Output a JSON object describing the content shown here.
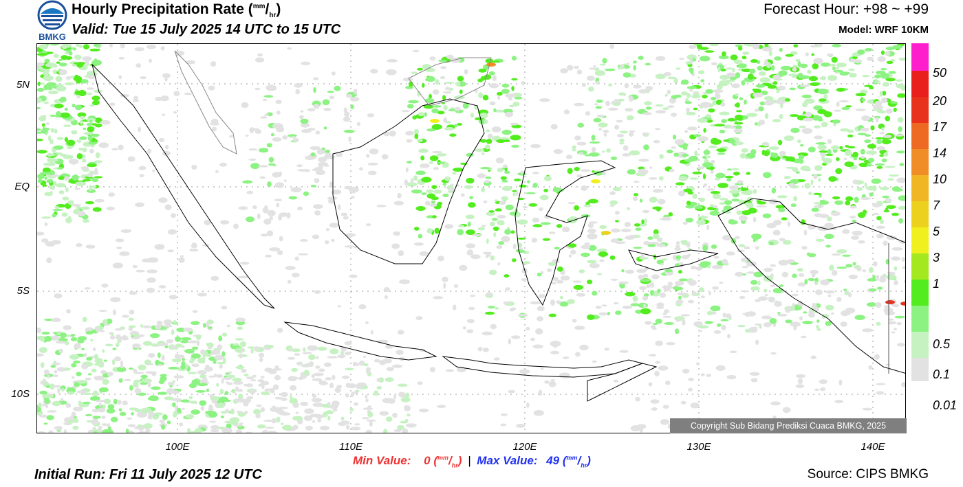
{
  "header": {
    "logo_text": "BMKG",
    "title_main": "Hourly Precipitation Rate (",
    "title_unit_num": "mm",
    "title_unit_sep": "/",
    "title_unit_den": "hr",
    "title_close": ")",
    "valid": "Valid: Tue 15 July 2025 14 UTC to 15 UTC",
    "forecast_hour": "Forecast Hour: +98 ~ +99",
    "model": "Model: WRF 10KM"
  },
  "axes": {
    "latitudes": [
      "5N",
      "EQ",
      "5S",
      "10S"
    ],
    "longitudes": [
      "100E",
      "110E",
      "120E",
      "130E",
      "140E"
    ]
  },
  "legend": {
    "labels": [
      "50",
      "20",
      "17",
      "14",
      "10",
      "7",
      "5",
      "3",
      "1",
      "0.5",
      "0.1",
      "0.01"
    ],
    "colors": [
      "#ff1ecc",
      "#e81f1c",
      "#e8321e",
      "#ee6a23",
      "#f08d27",
      "#f0b624",
      "#ecd21f",
      "#f0f01e",
      "#a4e81f",
      "#53ec1e",
      "#8cf282",
      "#c6f2c2",
      "#e2e2e2"
    ]
  },
  "footer": {
    "min_label": "Min Value:",
    "min_value": "0",
    "max_label": "Max Value:",
    "max_value": "49",
    "unit_num": "mm",
    "unit_sep": "/",
    "unit_den": "hr",
    "separator": "|",
    "initial_run": "Initial Run: Fri 11 July 2025 12 UTC",
    "source": "Source: CIPS BMKG",
    "copyright": "Copyright Sub Bidang Prediksi Cuaca BMKG, 2025"
  }
}
